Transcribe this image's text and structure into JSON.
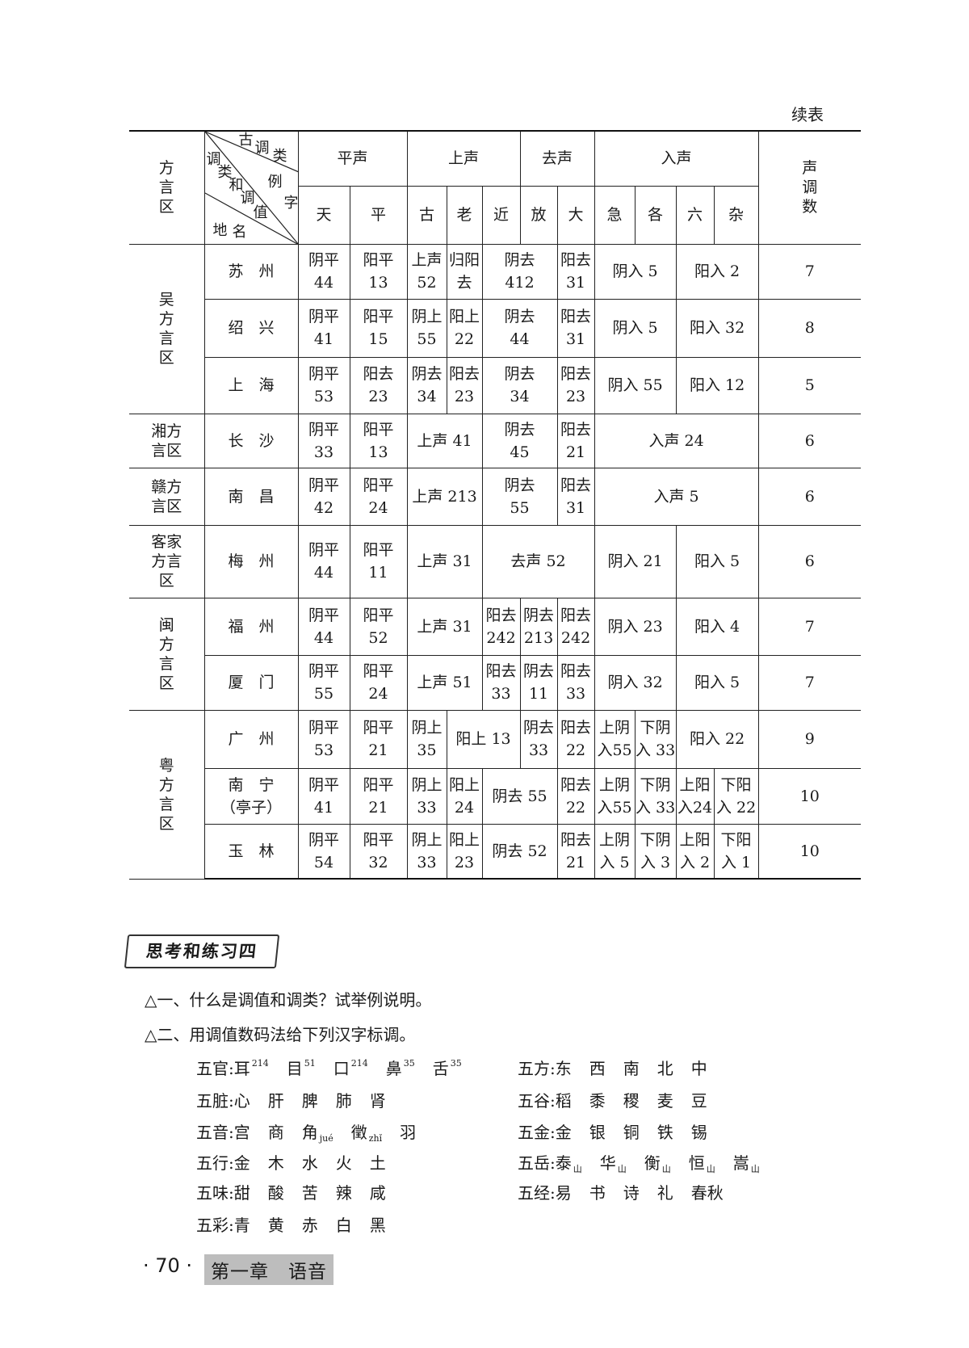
{
  "continued_label": "续表",
  "header": {
    "region_col": [
      "方",
      "言",
      "区"
    ],
    "diag": {
      "top": [
        "古",
        "调",
        "类"
      ],
      "right": [
        "例",
        "字"
      ],
      "middle": [
        "调",
        "类",
        "和",
        "调",
        "值"
      ],
      "bottom": [
        "地",
        "名"
      ]
    },
    "groups": [
      {
        "label": "平声",
        "span": 2
      },
      {
        "label": "上声",
        "span": 3
      },
      {
        "label": "去声",
        "span": 2
      },
      {
        "label": "入声",
        "span": 4
      }
    ],
    "chars": [
      "天",
      "平",
      "古",
      "老",
      "近",
      "放",
      "大",
      "急",
      "各",
      "六",
      "杂"
    ],
    "count_col": [
      "声",
      "调",
      "数"
    ]
  },
  "regions": [
    {
      "name": [
        "吴",
        "方",
        "言",
        "区"
      ],
      "rows": [
        {
          "place": "苏　州",
          "cells": [
            {
              "t": [
                "阴平",
                "44"
              ]
            },
            {
              "t": [
                "阳平",
                "13"
              ]
            },
            {
              "t": [
                "上声",
                "52"
              ]
            },
            {
              "t": [
                "归阳",
                "去"
              ]
            },
            {
              "t": [
                "阴去",
                "412"
              ],
              "span": 2
            },
            {
              "t": [
                "阳去",
                "31"
              ]
            },
            {
              "t": [
                "阴入 5"
              ],
              "span": 2
            },
            {
              "t": [
                "阳入 2"
              ],
              "span": 2
            }
          ],
          "count": "7"
        },
        {
          "place": "绍　兴",
          "cells": [
            {
              "t": [
                "阴平",
                "41"
              ]
            },
            {
              "t": [
                "阳平",
                "15"
              ]
            },
            {
              "t": [
                "阴上",
                "55"
              ]
            },
            {
              "t": [
                "阳上",
                "22"
              ]
            },
            {
              "t": [
                "阴去",
                "44"
              ],
              "span": 2
            },
            {
              "t": [
                "阳去",
                "31"
              ]
            },
            {
              "t": [
                "阴入 5"
              ],
              "span": 2
            },
            {
              "t": [
                "阳入 32"
              ],
              "span": 2
            }
          ],
          "count": "8"
        },
        {
          "place": "上　海",
          "cells": [
            {
              "t": [
                "阴平",
                "53"
              ]
            },
            {
              "t": [
                "阳去",
                "23"
              ]
            },
            {
              "t": [
                "阴去",
                "34"
              ]
            },
            {
              "t": [
                "阳去",
                "23"
              ]
            },
            {
              "t": [
                "阴去",
                "34"
              ],
              "span": 2
            },
            {
              "t": [
                "阳去",
                "23"
              ]
            },
            {
              "t": [
                "阴入 55"
              ],
              "span": 2
            },
            {
              "t": [
                "阳入 12"
              ],
              "span": 2
            }
          ],
          "count": "5"
        }
      ]
    },
    {
      "name": [
        "湘方",
        "言区"
      ],
      "rows": [
        {
          "place": "长　沙",
          "cells": [
            {
              "t": [
                "阴平",
                "33"
              ]
            },
            {
              "t": [
                "阳平",
                "13"
              ]
            },
            {
              "t": [
                "上声 41"
              ],
              "span": 2
            },
            {
              "t": [
                "阴去",
                "45"
              ],
              "span": 2
            },
            {
              "t": [
                "阳去",
                "21"
              ]
            },
            {
              "t": [
                "入声 24"
              ],
              "span": 4
            }
          ],
          "count": "6"
        }
      ]
    },
    {
      "name": [
        "赣方",
        "言区"
      ],
      "rows": [
        {
          "place": "南　昌",
          "cells": [
            {
              "t": [
                "阴平",
                "42"
              ]
            },
            {
              "t": [
                "阳平",
                "24"
              ]
            },
            {
              "t": [
                "上声 213"
              ],
              "span": 2
            },
            {
              "t": [
                "阴去",
                "55"
              ],
              "span": 2
            },
            {
              "t": [
                "阳去",
                "31"
              ]
            },
            {
              "t": [
                "入声 5"
              ],
              "span": 4
            }
          ],
          "count": "6"
        }
      ]
    },
    {
      "name": [
        "客家",
        "方言",
        "区"
      ],
      "rows": [
        {
          "place": "梅　州",
          "cells": [
            {
              "t": [
                "阴平",
                "44"
              ]
            },
            {
              "t": [
                "阳平",
                "11"
              ]
            },
            {
              "t": [
                "上声 31"
              ],
              "span": 2
            },
            {
              "t": [
                "去声 52"
              ],
              "span": 3
            },
            {
              "t": [
                "阴入 21"
              ],
              "span": 2
            },
            {
              "t": [
                "阳入 5"
              ],
              "span": 2
            }
          ],
          "count": "6"
        }
      ]
    },
    {
      "name": [
        "闽",
        "方",
        "言",
        "区"
      ],
      "rows": [
        {
          "place": "福　州",
          "cells": [
            {
              "t": [
                "阴平",
                "44"
              ]
            },
            {
              "t": [
                "阳平",
                "52"
              ]
            },
            {
              "t": [
                "上声 31"
              ],
              "span": 2
            },
            {
              "t": [
                "阳去",
                "242"
              ]
            },
            {
              "t": [
                "阴去",
                "213"
              ]
            },
            {
              "t": [
                "阳去",
                "242"
              ]
            },
            {
              "t": [
                "阴入 23"
              ],
              "span": 2
            },
            {
              "t": [
                "阳入 4"
              ],
              "span": 2
            }
          ],
          "count": "7"
        },
        {
          "place": "厦　门",
          "cells": [
            {
              "t": [
                "阴平",
                "55"
              ]
            },
            {
              "t": [
                "阳平",
                "24"
              ]
            },
            {
              "t": [
                "上声 51"
              ],
              "span": 2
            },
            {
              "t": [
                "阳去",
                "33"
              ]
            },
            {
              "t": [
                "阴去",
                "11"
              ]
            },
            {
              "t": [
                "阳去",
                "33"
              ]
            },
            {
              "t": [
                "阴入 32"
              ],
              "span": 2
            },
            {
              "t": [
                "阳入 5"
              ],
              "span": 2
            }
          ],
          "count": "7"
        }
      ]
    },
    {
      "name": [
        "粤",
        "方",
        "言",
        "区"
      ],
      "rows": [
        {
          "place": "广　州",
          "cells": [
            {
              "t": [
                "阴平",
                "53"
              ]
            },
            {
              "t": [
                "阳平",
                "21"
              ]
            },
            {
              "t": [
                "阴上",
                "35"
              ]
            },
            {
              "t": [
                "阳上 13"
              ],
              "span": 2
            },
            {
              "t": [
                "阴去",
                "33"
              ]
            },
            {
              "t": [
                "阳去",
                "22"
              ]
            },
            {
              "t": [
                "上阴",
                "入55"
              ]
            },
            {
              "t": [
                "下阴",
                "入 33"
              ]
            },
            {
              "t": [
                "阳入 22"
              ],
              "span": 2
            }
          ],
          "count": "9"
        },
        {
          "place": "南　宁",
          "place2": "（亭子）",
          "cells": [
            {
              "t": [
                "阴平",
                "41"
              ]
            },
            {
              "t": [
                "阳平",
                "21"
              ]
            },
            {
              "t": [
                "阴上",
                "33"
              ]
            },
            {
              "t": [
                "阳上",
                "24"
              ]
            },
            {
              "t": [
                "阴去 55"
              ],
              "span": 2
            },
            {
              "t": [
                "阳去",
                "22"
              ]
            },
            {
              "t": [
                "上阴",
                "入55"
              ]
            },
            {
              "t": [
                "下阴",
                "入 33"
              ]
            },
            {
              "t": [
                "上阳",
                "入24"
              ]
            },
            {
              "t": [
                "下阳",
                "入 22"
              ]
            }
          ],
          "count": "10"
        },
        {
          "place": "玉　林",
          "cells": [
            {
              "t": [
                "阴平",
                "54"
              ]
            },
            {
              "t": [
                "阳平",
                "32"
              ]
            },
            {
              "t": [
                "阴上",
                "33"
              ]
            },
            {
              "t": [
                "阳上",
                "23"
              ]
            },
            {
              "t": [
                "阴去 52"
              ],
              "span": 2
            },
            {
              "t": [
                "阳去",
                "21"
              ]
            },
            {
              "t": [
                "上阴",
                "入 5"
              ]
            },
            {
              "t": [
                "下阴",
                "入 3"
              ]
            },
            {
              "t": [
                "上阳",
                "入 2"
              ]
            },
            {
              "t": [
                "下阳",
                "入 1"
              ]
            }
          ],
          "count": "10"
        }
      ]
    }
  ],
  "exercise": {
    "heading": "思考和练习四",
    "q1": "△一、什么是调值和调类？试举例说明。",
    "q2": "△二、用调值数码法给下列汉字标调。",
    "left": [
      {
        "label": "五官:",
        "items": [
          {
            "c": "耳",
            "sup": "214"
          },
          {
            "c": "目",
            "sup": "51"
          },
          {
            "c": "口",
            "sup": "214"
          },
          {
            "c": "鼻",
            "sup": "35"
          },
          {
            "c": "舌",
            "sup": "35"
          }
        ]
      },
      {
        "label": "五脏:",
        "items": [
          {
            "c": "心"
          },
          {
            "c": "肝"
          },
          {
            "c": "脾"
          },
          {
            "c": "肺"
          },
          {
            "c": "肾"
          }
        ]
      },
      {
        "label": "五音:",
        "items": [
          {
            "c": "宫"
          },
          {
            "c": "商"
          },
          {
            "c": "角",
            "sub": "jué"
          },
          {
            "c": "徵",
            "sub": "zhǐ"
          },
          {
            "c": "羽"
          }
        ]
      },
      {
        "label": "五行:",
        "items": [
          {
            "c": "金"
          },
          {
            "c": "木"
          },
          {
            "c": "水"
          },
          {
            "c": "火"
          },
          {
            "c": "土"
          }
        ]
      },
      {
        "label": "五味:",
        "items": [
          {
            "c": "甜"
          },
          {
            "c": "酸"
          },
          {
            "c": "苦"
          },
          {
            "c": "辣"
          },
          {
            "c": "咸"
          }
        ]
      },
      {
        "label": "五彩:",
        "items": [
          {
            "c": "青"
          },
          {
            "c": "黄"
          },
          {
            "c": "赤"
          },
          {
            "c": "白"
          },
          {
            "c": "黑"
          }
        ]
      }
    ],
    "right": [
      {
        "label": "五方:",
        "items": [
          {
            "c": "东"
          },
          {
            "c": "西"
          },
          {
            "c": "南"
          },
          {
            "c": "北"
          },
          {
            "c": "中"
          }
        ]
      },
      {
        "label": "五谷:",
        "items": [
          {
            "c": "稻"
          },
          {
            "c": "黍"
          },
          {
            "c": "稷"
          },
          {
            "c": "麦"
          },
          {
            "c": "豆"
          }
        ]
      },
      {
        "label": "五金:",
        "items": [
          {
            "c": "金"
          },
          {
            "c": "银"
          },
          {
            "c": "铜"
          },
          {
            "c": "铁"
          },
          {
            "c": "锡"
          }
        ]
      },
      {
        "label": "五岳:",
        "items": [
          {
            "c": "泰",
            "sub": "山"
          },
          {
            "c": "华",
            "sub": "山"
          },
          {
            "c": "衡",
            "sub": "山"
          },
          {
            "c": "恒",
            "sub": "山"
          },
          {
            "c": "嵩",
            "sub": "山"
          }
        ]
      },
      {
        "label": "五经:",
        "items": [
          {
            "c": "易"
          },
          {
            "c": "书"
          },
          {
            "c": "诗"
          },
          {
            "c": "礼"
          },
          {
            "c": "春秋"
          }
        ]
      }
    ]
  },
  "footer": {
    "page": "· 70 ·",
    "chapter": "第一章　语音"
  }
}
